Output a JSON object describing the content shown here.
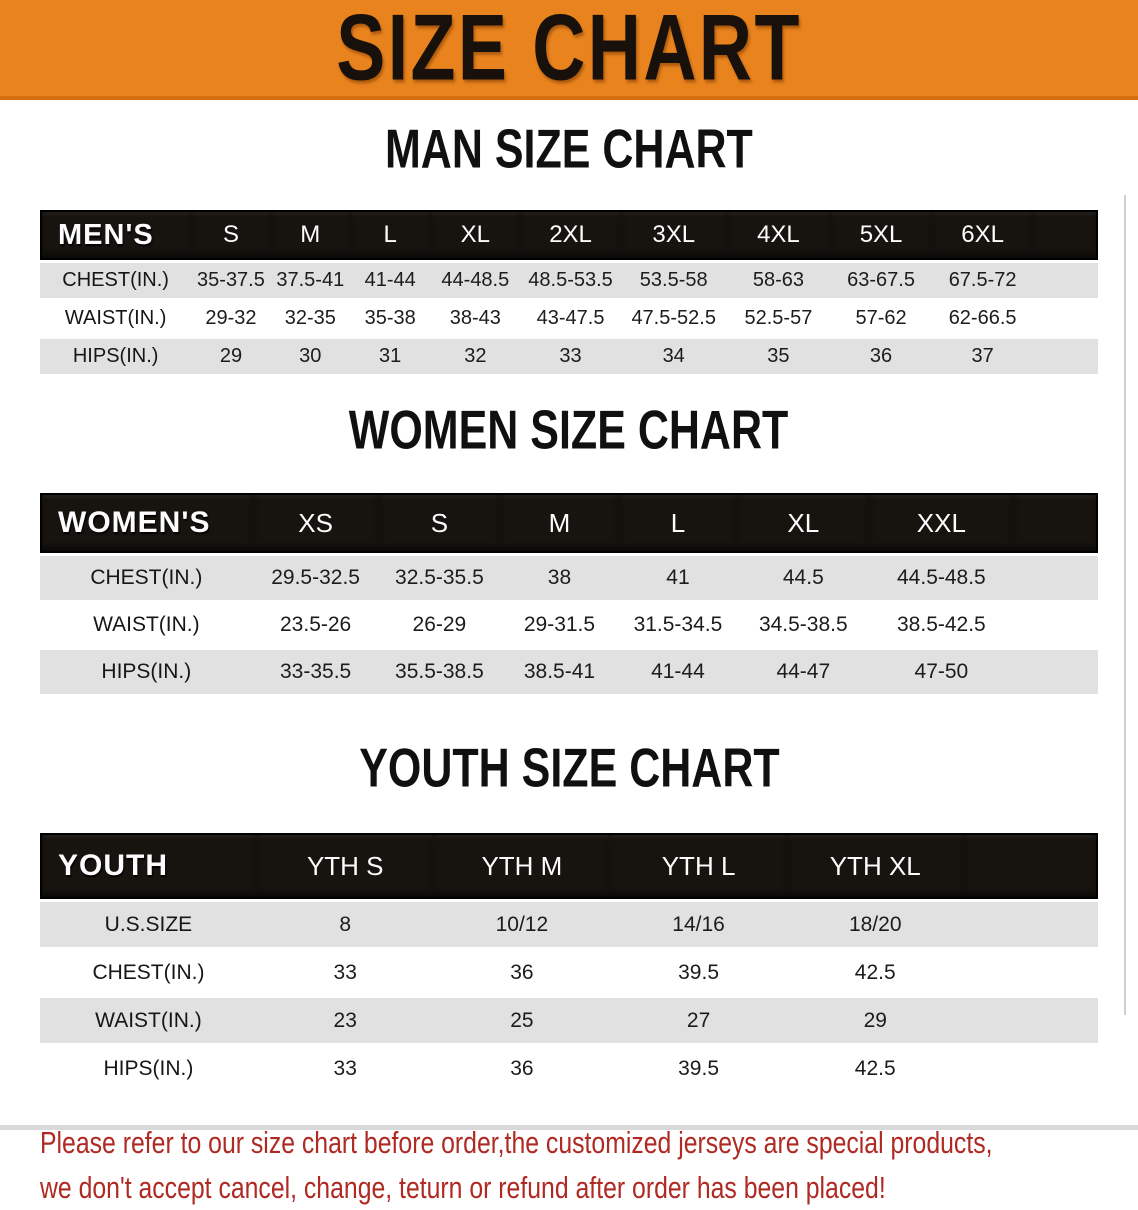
{
  "banner": {
    "title": "SIZE CHART"
  },
  "colors": {
    "banner_bg": "#E8831E",
    "header_bg": "#17130F",
    "row_shade": "#E1E1E1",
    "note_color": "#B02A24"
  },
  "sections": [
    {
      "id": "men",
      "heading": "MAN SIZE CHART",
      "table": {
        "corner": "MEN'S",
        "columns": [
          "S",
          "M",
          "L",
          "XL",
          "2XL",
          "3XL",
          "4XL",
          "5XL",
          "6XL"
        ],
        "rows": [
          {
            "label": "CHEST(IN.)",
            "values": [
              "35-37.5",
              "37.5-41",
              "41-44",
              "44-48.5",
              "48.5-53.5",
              "53.5-58",
              "58-63",
              "63-67.5",
              "67.5-72"
            ]
          },
          {
            "label": "WAIST(IN.)",
            "values": [
              "29-32",
              "32-35",
              "35-38",
              "38-43",
              "43-47.5",
              "47.5-52.5",
              "52.5-57",
              "57-62",
              "62-66.5"
            ]
          },
          {
            "label": "HIPS(IN.)",
            "values": [
              "29",
              "30",
              "31",
              "32",
              "33",
              "34",
              "35",
              "36",
              "37"
            ]
          }
        ]
      }
    },
    {
      "id": "women",
      "heading": "WOMEN SIZE CHART",
      "table": {
        "corner": "WOMEN'S",
        "columns": [
          "XS",
          "S",
          "M",
          "L",
          "XL",
          "XXL"
        ],
        "rows": [
          {
            "label": "CHEST(IN.)",
            "values": [
              "29.5-32.5",
              "32.5-35.5",
              "38",
              "41",
              "44.5",
              "44.5-48.5"
            ]
          },
          {
            "label": "WAIST(IN.)",
            "values": [
              "23.5-26",
              "26-29",
              "29-31.5",
              "31.5-34.5",
              "34.5-38.5",
              "38.5-42.5"
            ]
          },
          {
            "label": "HIPS(IN.)",
            "values": [
              "33-35.5",
              "35.5-38.5",
              "38.5-41",
              "41-44",
              "44-47",
              "47-50"
            ]
          }
        ]
      }
    },
    {
      "id": "youth",
      "heading": "YOUTH SIZE CHART",
      "table": {
        "corner": "YOUTH",
        "columns": [
          "YTH S",
          "YTH M",
          "YTH L",
          "YTH XL"
        ],
        "rows": [
          {
            "label": "U.S.SIZE",
            "values": [
              "8",
              "10/12",
              "14/16",
              "18/20"
            ]
          },
          {
            "label": "CHEST(IN.)",
            "values": [
              "33",
              "36",
              "39.5",
              "42.5"
            ]
          },
          {
            "label": "WAIST(IN.)",
            "values": [
              "23",
              "25",
              "27",
              "29"
            ]
          },
          {
            "label": "HIPS(IN.)",
            "values": [
              "33",
              "36",
              "39.5",
              "42.5"
            ]
          }
        ]
      }
    }
  ],
  "note": {
    "line1": "Please refer to our size chart before order,the customized jerseys are special products,",
    "line2": "we don't accept cancel, change, teturn or refund after order has been placed!"
  }
}
